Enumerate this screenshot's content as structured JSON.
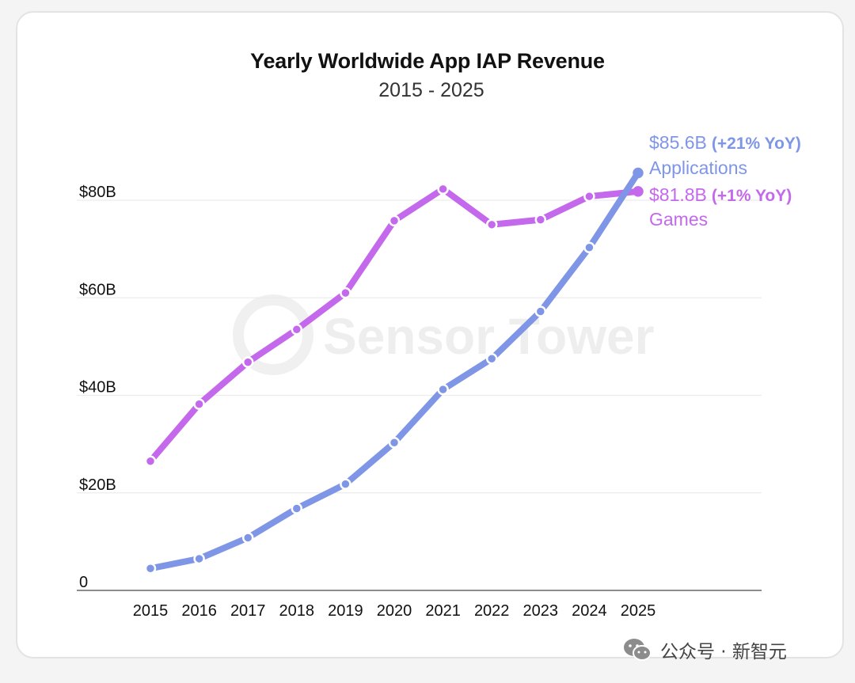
{
  "colors": {
    "applications": "#7f95e6",
    "games": "#c468ec",
    "grid": "#ececec",
    "axis": "#666666"
  },
  "chart_data": {
    "type": "line",
    "title": "Yearly Worldwide App IAP Revenue",
    "subtitle": "2015 - 2025",
    "xlabel": "",
    "ylabel": "",
    "categories": [
      "2015",
      "2016",
      "2017",
      "2018",
      "2019",
      "2020",
      "2021",
      "2022",
      "2023",
      "2024",
      "2025"
    ],
    "ylim": [
      0,
      100
    ],
    "yticks": [
      0,
      20,
      40,
      60,
      80
    ],
    "ytick_labels": [
      "0",
      "$20B",
      "$40B",
      "$60B",
      "$80B"
    ],
    "grid": true,
    "series": [
      {
        "key": "games",
        "name": "Games",
        "values": [
          26.5,
          38.2,
          46.8,
          53.5,
          61.0,
          75.8,
          82.3,
          75.0,
          76.0,
          80.8,
          81.8
        ],
        "label_value": "$81.8B",
        "label_yoy": "(+1% YoY)"
      },
      {
        "key": "applications",
        "name": "Applications",
        "values": [
          4.5,
          6.5,
          10.8,
          16.8,
          21.8,
          30.3,
          41.2,
          47.5,
          57.2,
          70.3,
          85.6
        ],
        "label_value": "$85.6B",
        "label_yoy": "(+21% YoY)"
      }
    ]
  },
  "watermark": "Sensor Tower",
  "footer": {
    "icon": "wechat-icon",
    "text": "公众号 · 新智元"
  }
}
